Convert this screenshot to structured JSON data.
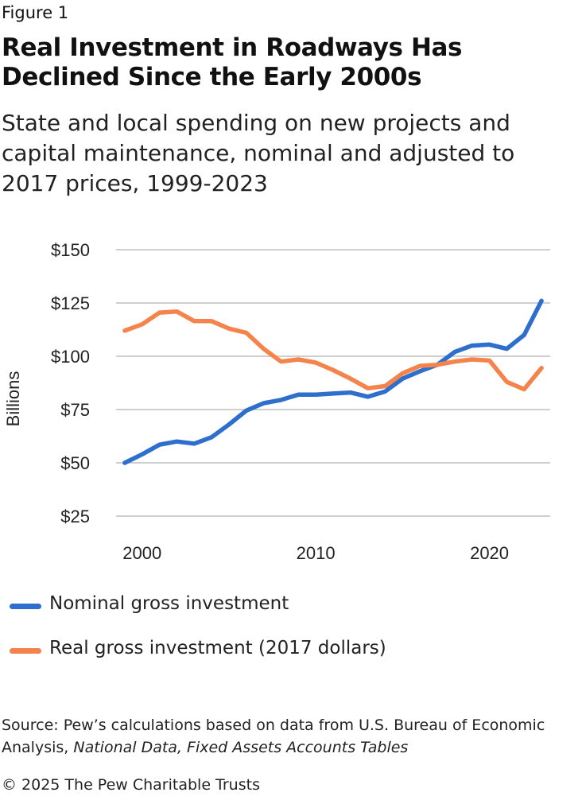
{
  "figure_label": "Figure 1",
  "title": "Real Investment in Roadways Has Declined Since the Early 2000s",
  "subtitle": "State and local spending on new projects and capital maintenance, nominal and adjusted to 2017 prices, 1999-2023",
  "source": {
    "prefix": "Source: Pew’s calculations based on data from U.S. Bureau of Economic Analysis, ",
    "italic": "National Data, Fixed Assets Accounts Tables"
  },
  "copyright": "© 2025 The Pew Charitable Trusts",
  "colors": {
    "nominal": "#2e6fce",
    "real": "#f5844c",
    "grid": "#bfbfbf"
  },
  "chart_data": {
    "type": "line",
    "title": "",
    "xlabel": "",
    "ylabel": "Billions",
    "x": [
      1999,
      2000,
      2001,
      2002,
      2003,
      2004,
      2005,
      2006,
      2007,
      2008,
      2009,
      2010,
      2011,
      2012,
      2013,
      2014,
      2015,
      2016,
      2017,
      2018,
      2019,
      2020,
      2021,
      2022,
      2023
    ],
    "xlim": [
      1998.5,
      2023.5
    ],
    "xticks": [
      2000,
      2010,
      2020
    ],
    "xtick_labels": [
      "2000",
      "2010",
      "2020"
    ],
    "ylim": [
      25,
      150
    ],
    "yticks": [
      25,
      50,
      75,
      100,
      125,
      150
    ],
    "ytick_labels": [
      "$25",
      "$50",
      "$75",
      "$100",
      "$125",
      "$150"
    ],
    "grid": "horizontal",
    "legend_position": "bottom",
    "series": [
      {
        "name": "Nominal gross investment",
        "color": "#2e6fce",
        "values": [
          50,
          54,
          58.5,
          60,
          59,
          62,
          68,
          74.5,
          78,
          79.5,
          82,
          82,
          82.5,
          83,
          81,
          83.5,
          89.5,
          93,
          96,
          102,
          105,
          105.5,
          103.5,
          110,
          126
        ]
      },
      {
        "name": "Real gross investment (2017 dollars)",
        "color": "#f5844c",
        "values": [
          112,
          115,
          120.5,
          121,
          116.5,
          116.5,
          113,
          111,
          103.5,
          97.5,
          98.5,
          97,
          93.5,
          89.5,
          85,
          86,
          92,
          95.5,
          96,
          97.5,
          98.5,
          98,
          88,
          84.5,
          94.5
        ]
      }
    ]
  }
}
